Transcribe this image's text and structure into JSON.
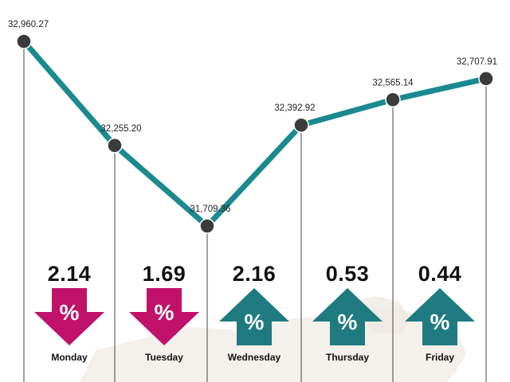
{
  "colors": {
    "line": "#1b8a8f",
    "marker": "#3a3b3d",
    "down": "#c0126b",
    "up": "#1f7b80",
    "drop_line": "#444444",
    "map": "#efeae4"
  },
  "icons": {
    "down": "down-arrow-percent-icon",
    "up": "up-arrow-percent-icon",
    "map": "background-map-decoration"
  },
  "chart_data": {
    "type": "line",
    "categories": [
      "Monday",
      "Tuesday",
      "Wednesday",
      "Thursday",
      "Friday"
    ],
    "x": [
      0,
      1,
      2,
      3,
      4,
      5
    ],
    "values": [
      32960.27,
      32255.2,
      31709.36,
      32392.92,
      32565.14,
      32707.91
    ],
    "value_labels": [
      "32,960.27",
      "32,255.20",
      "31,709.36",
      "32,392.92",
      "32,565.14",
      "32,707.91"
    ],
    "ylim": [
      31709.36,
      32960.27
    ],
    "grid": false,
    "title": "",
    "xlabel": "",
    "ylabel": "",
    "daily_changes": [
      {
        "day": "Monday",
        "value": "2.14",
        "direction": "down",
        "symbol": "%"
      },
      {
        "day": "Tuesday",
        "value": "1.69",
        "direction": "down",
        "symbol": "%"
      },
      {
        "day": "Wednesday",
        "value": "2.16",
        "direction": "up",
        "symbol": "%"
      },
      {
        "day": "Thursday",
        "value": "0.53",
        "direction": "up",
        "symbol": "%"
      },
      {
        "day": "Friday",
        "value": "0.44",
        "direction": "up",
        "symbol": "%"
      }
    ]
  }
}
